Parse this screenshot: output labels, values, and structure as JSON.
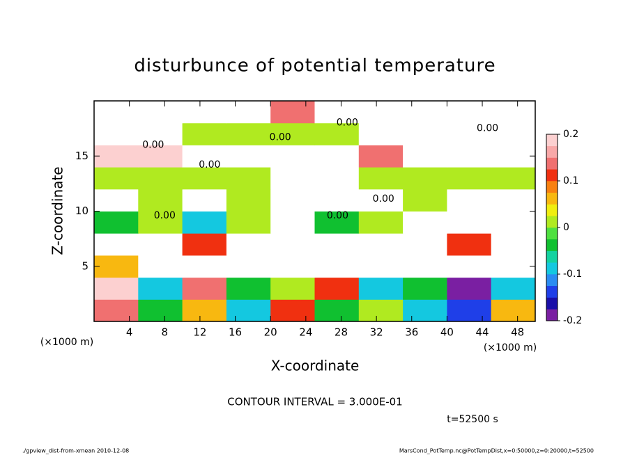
{
  "chart_data": {
    "type": "contourf",
    "title": "disturbunce of potential temperature",
    "x_label": "X-coordinate",
    "y_label": "Z-coordinate",
    "x_unit": "(×1000 m)",
    "y_unit": "(×1000 m)",
    "xlim": [
      0,
      50
    ],
    "ylim": [
      0,
      20
    ],
    "xticks": [
      4,
      8,
      12,
      16,
      20,
      24,
      28,
      32,
      36,
      40,
      44,
      48
    ],
    "yticks": [
      5,
      10,
      15
    ],
    "z": [
      [
        0.15,
        -0.05,
        0.05,
        -0.1,
        0.1,
        -0.05,
        0.0,
        -0.1,
        -0.15,
        0.05
      ],
      [
        0.2,
        -0.1,
        0.15,
        -0.05,
        0.0,
        0.1,
        -0.1,
        -0.05,
        -0.2,
        -0.1
      ],
      [
        0.05,
        0.25,
        0.25,
        0.25,
        0.25,
        0.25,
        0.25,
        0.25,
        0.25,
        0.25
      ],
      [
        0.25,
        0.25,
        0.1,
        0.25,
        0.25,
        0.25,
        0.25,
        0.25,
        0.1,
        0.25
      ],
      [
        -0.05,
        0.0,
        -0.08,
        0.0,
        0.25,
        -0.05,
        0.0,
        0.25,
        0.25,
        0.25
      ],
      [
        0.25,
        0.02,
        0.25,
        0.02,
        0.25,
        0.25,
        0.25,
        0.0,
        0.25,
        0.25
      ],
      [
        0.0,
        0.0,
        0.02,
        0.0,
        0.25,
        0.25,
        0.0,
        0.02,
        0.0,
        0.0
      ],
      [
        0.2,
        0.18,
        0.25,
        0.25,
        0.25,
        0.25,
        0.15,
        0.25,
        0.25,
        0.25
      ],
      [
        0.25,
        0.25,
        0.0,
        0.0,
        0.02,
        0.0,
        0.25,
        0.25,
        0.25,
        0.25
      ],
      [
        0.25,
        0.25,
        0.25,
        0.25,
        0.15,
        0.25,
        0.25,
        0.25,
        0.25,
        0.25
      ]
    ],
    "contour_labels": [
      {
        "text": "0.00",
        "x": 28.7,
        "y": 18.0
      },
      {
        "text": "0.00",
        "x": 6.7,
        "y": 16.0
      },
      {
        "text": "0.00",
        "x": 21.1,
        "y": 16.7
      },
      {
        "text": "0.00",
        "x": 13.1,
        "y": 14.2
      },
      {
        "text": "0.00",
        "x": 8.0,
        "y": 9.6
      },
      {
        "text": "0.00",
        "x": 27.6,
        "y": 9.6
      },
      {
        "text": "0.00",
        "x": 44.6,
        "y": 17.5
      },
      {
        "text": "0.00",
        "x": 32.8,
        "y": 11.1
      }
    ],
    "colorbar": {
      "lim": [
        -0.2,
        0.2
      ],
      "ticks": [
        0.2,
        0.1,
        0,
        -0.1,
        -0.2
      ],
      "colors": [
        "#7a1fa2",
        "#1a0fa8",
        "#1f3fe8",
        "#2a8cf2",
        "#14c8e0",
        "#14d2a0",
        "#10c030",
        "#4ee040",
        "#b0ea20",
        "#f0ee10",
        "#f8b810",
        "#f88010",
        "#f03010",
        "#f07070",
        "#f8a8a8",
        "#fcd0d0"
      ],
      "over_color": "#ffffff"
    },
    "contour_interval": "CONTOUR INTERVAL = 3.000E-01",
    "time_label": "t=52500 s",
    "footer_left": "./gpview_dist-from-xmean  2010-12-08",
    "footer_right": "MarsCond_PotTemp.nc@PotTempDist,x=0:50000,z=0:20000,t=52500"
  }
}
